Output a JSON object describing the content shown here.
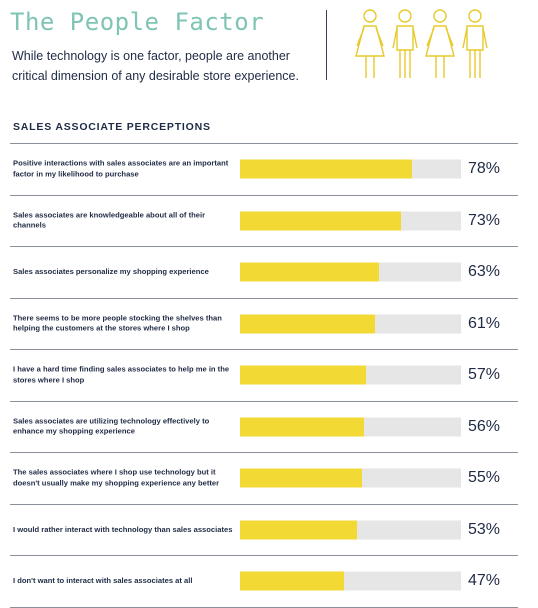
{
  "header": {
    "title": "The People Factor",
    "subtitle": "While technology is one factor, people are another critical dimension of any desirable store experience.",
    "icon": "people-group-icon"
  },
  "section_title": "SALES ASSOCIATE PERCEPTIONS",
  "colors": {
    "bar": "#f2d934",
    "track": "#e6e6e6",
    "title": "#7fc4b4",
    "text": "#1f2a44"
  },
  "chart_data": {
    "type": "bar",
    "orientation": "horizontal",
    "title": "SALES ASSOCIATE PERCEPTIONS",
    "xlim": [
      0,
      100
    ],
    "categories": [
      "Positive interactions with sales associates are an important factor in my likelihood to purchase",
      "Sales associates are knowledgeable about all of their channels",
      "Sales associates personalize my shopping experience",
      "There seems to be more people stocking the shelves than helping the customers at the stores where I shop",
      "I have a hard time finding sales associates to help me in the stores where I shop",
      "Sales associates are utilizing technology effectively to enhance my shopping experience",
      "The sales associates where I shop use technology but it doesn't usually make my shopping experience any better",
      "I would rather interact with technology than sales associates",
      "I don't want to interact with sales associates at all"
    ],
    "values": [
      78,
      73,
      63,
      61,
      57,
      56,
      55,
      53,
      47
    ],
    "value_labels": [
      "78%",
      "73%",
      "63%",
      "61%",
      "57%",
      "56%",
      "55%",
      "53%",
      "47%"
    ]
  }
}
